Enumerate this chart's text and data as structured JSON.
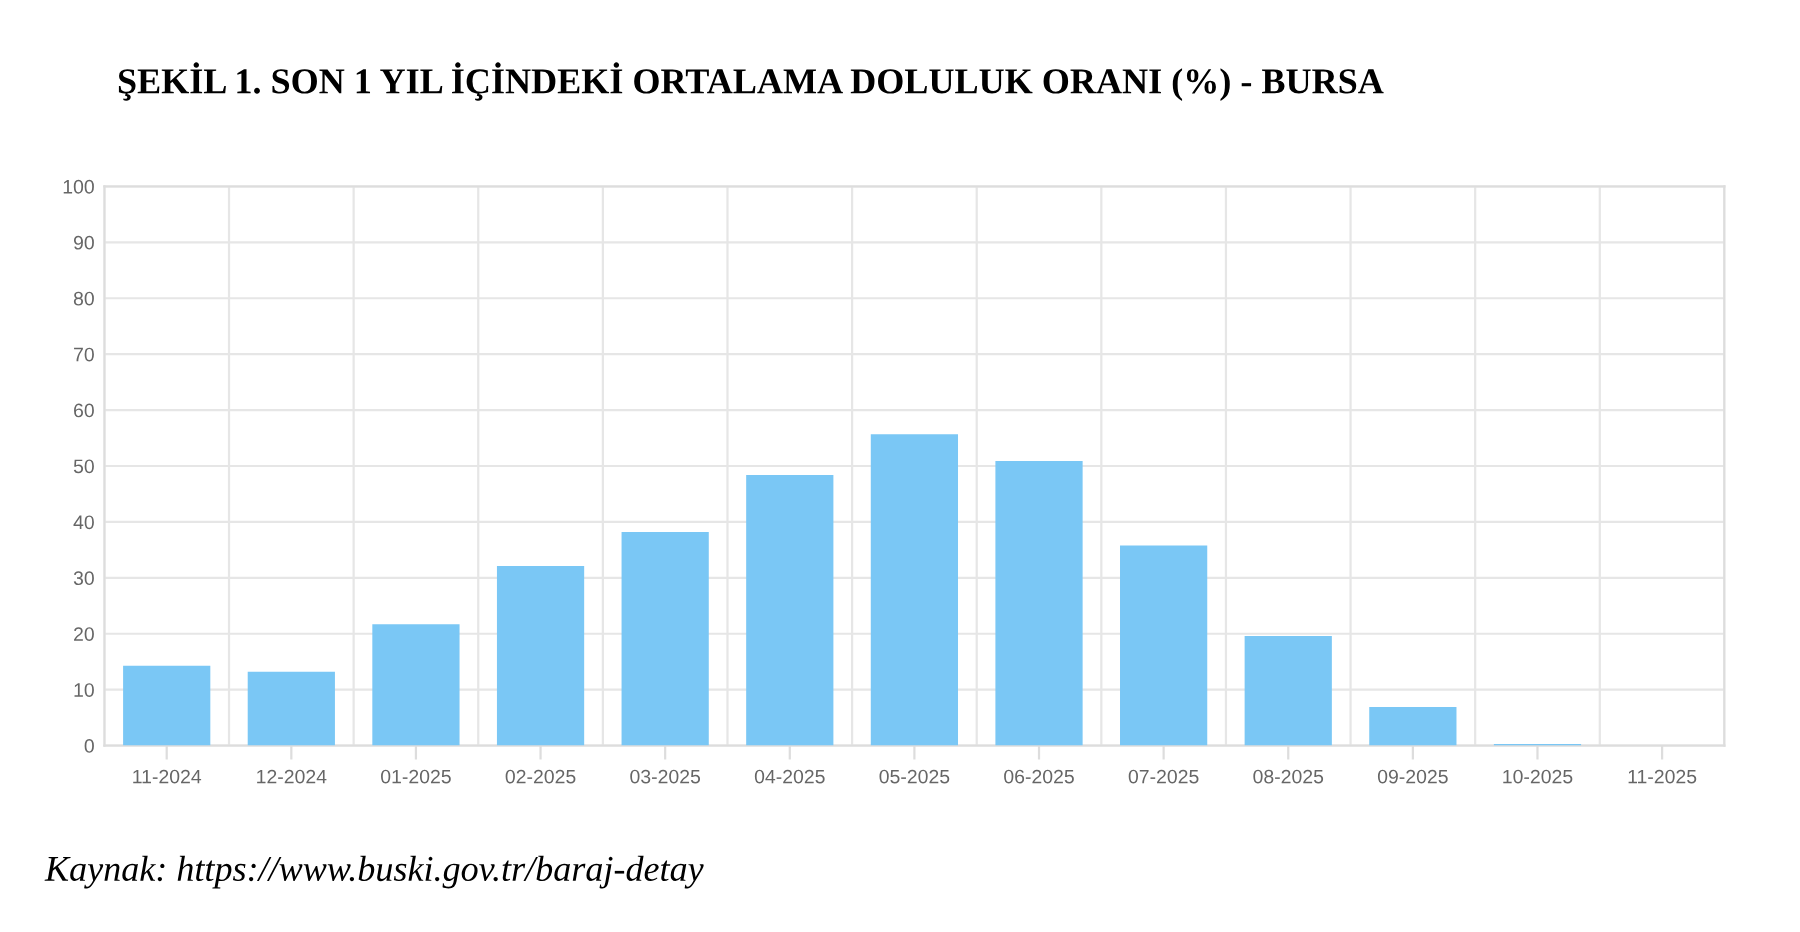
{
  "chart_data": {
    "type": "bar",
    "title": "ŞEKİL 1. SON 1 YIL İÇİNDEKİ ORTALAMA DOLULUK ORANI (%) - BURSA",
    "categories": [
      "11-2024",
      "12-2024",
      "01-2025",
      "02-2025",
      "03-2025",
      "04-2025",
      "05-2025",
      "06-2025",
      "07-2025",
      "08-2025",
      "09-2025",
      "10-2025",
      "11-2025"
    ],
    "values": [
      14.3,
      13.2,
      21.7,
      32.1,
      38.2,
      48.4,
      55.7,
      50.9,
      35.8,
      19.6,
      6.9,
      0.3,
      0
    ],
    "color": "#7ac7f5",
    "ylim": [
      0,
      100
    ],
    "yticks": [
      0,
      10,
      20,
      30,
      40,
      50,
      60,
      70,
      80,
      90,
      100
    ],
    "grid": true,
    "annotations": [
      "Kaynak: https://www.buski.gov.tr/baraj-detay"
    ]
  }
}
